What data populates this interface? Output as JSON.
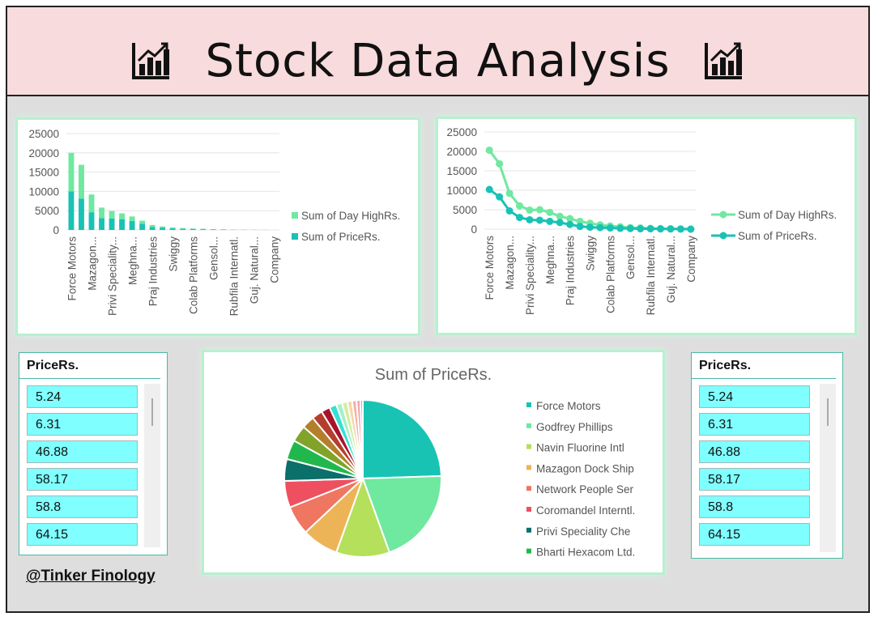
{
  "title": "Stock Data Analysis",
  "credit": "@Tinker Finology",
  "slicers": [
    {
      "header": "PriceRs.",
      "items": [
        "5.24",
        "6.31",
        "46.88",
        "58.17",
        "58.8",
        "64.15"
      ]
    },
    {
      "header": "PriceRs.",
      "items": [
        "5.24",
        "6.31",
        "46.88",
        "58.17",
        "58.8",
        "64.15"
      ]
    }
  ],
  "colors": {
    "high": "#6fe8a0",
    "price": "#19c2b5"
  },
  "chart_data": [
    {
      "type": "bar",
      "categories": [
        "Force Motors",
        "",
        "Mazagon...",
        "",
        "Privi Speciality...",
        "",
        "Meghna...",
        "",
        "Praj Industries",
        "",
        "Swiggy",
        "",
        "Colab Platforms",
        "",
        "Gensol...",
        "",
        "Rubfila Internatl.",
        "",
        "Guj. Natural...",
        "",
        "Company"
      ],
      "series": [
        {
          "name": "Sum of Day HighRs.",
          "values": [
            10000,
            8800,
            4600,
            2700,
            1900,
            1500,
            1200,
            800,
            500,
            300,
            250,
            200,
            150,
            100,
            80,
            60,
            40,
            30,
            20,
            10,
            0
          ]
        },
        {
          "name": "Sum of PriceRs.",
          "values": [
            10000,
            8100,
            4600,
            3100,
            3000,
            2800,
            2300,
            1600,
            800,
            600,
            400,
            300,
            250,
            200,
            150,
            100,
            60,
            40,
            30,
            20,
            0
          ]
        }
      ],
      "stacked": true,
      "ylim": [
        0,
        25000
      ],
      "yticks": [
        "25000",
        "20000",
        "15000",
        "10000",
        "5000",
        "0"
      ],
      "legend": "right"
    },
    {
      "type": "line",
      "categories": [
        "Force Motors",
        "",
        "Mazagon...",
        "",
        "Privi Speciality...",
        "",
        "Meghna...",
        "",
        "Praj Industries",
        "",
        "Swiggy",
        "",
        "Colab Platforms",
        "",
        "Gensol...",
        "",
        "Rubfila Internatl.",
        "",
        "Guj. Natural...",
        "",
        "Company"
      ],
      "series": [
        {
          "name": "Sum of Day HighRs.",
          "values": [
            20300,
            16800,
            9200,
            6000,
            4900,
            5000,
            4300,
            3300,
            2700,
            2000,
            1500,
            1100,
            800,
            600,
            400,
            300,
            200,
            150,
            100,
            50,
            0
          ]
        },
        {
          "name": "Sum of PriceRs.",
          "values": [
            10200,
            8300,
            4700,
            3000,
            2400,
            2300,
            2000,
            1700,
            1200,
            700,
            500,
            400,
            300,
            200,
            150,
            100,
            80,
            60,
            40,
            20,
            0
          ]
        }
      ],
      "ylim": [
        0,
        25000
      ],
      "yticks": [
        "25000",
        "20000",
        "15000",
        "10000",
        "5000",
        "0"
      ],
      "legend": "right"
    },
    {
      "type": "pie",
      "title": "Sum of PriceRs.",
      "slices": [
        {
          "label": "Force Motors",
          "value": 24.5,
          "color": "#18c3b4"
        },
        {
          "label": "Godfrey Phillips",
          "value": 20.0,
          "color": "#6fe8a0"
        },
        {
          "label": "Navin Fluorine Intl",
          "value": 11.0,
          "color": "#b4e05b"
        },
        {
          "label": "Mazagon Dock Ship",
          "value": 7.5,
          "color": "#ecb457"
        },
        {
          "label": "Network People Ser",
          "value": 6.0,
          "color": "#ef7660"
        },
        {
          "label": "Coromandel Interntl.",
          "value": 5.5,
          "color": "#ef5060"
        },
        {
          "label": "Privi Speciality Che",
          "value": 4.5,
          "color": "#0b6f6a"
        },
        {
          "label": "Bharti Hexacom Ltd.",
          "value": 4.0,
          "color": "#20b84d"
        },
        {
          "label": "",
          "value": 3.4,
          "color": "#82a32a"
        },
        {
          "label": "",
          "value": 2.6,
          "color": "#b37f2a"
        },
        {
          "label": "",
          "value": 2.2,
          "color": "#b53d2d"
        },
        {
          "label": "",
          "value": 1.8,
          "color": "#a8132b"
        },
        {
          "label": "",
          "value": 1.5,
          "color": "#37e0d4"
        },
        {
          "label": "",
          "value": 1.2,
          "color": "#a3f2c4"
        },
        {
          "label": "",
          "value": 1.1,
          "color": "#d3ee9e"
        },
        {
          "label": "",
          "value": 1.0,
          "color": "#f5d7a8"
        },
        {
          "label": "",
          "value": 0.9,
          "color": "#f3b0a4"
        },
        {
          "label": "",
          "value": 0.8,
          "color": "#f3a5b0"
        },
        {
          "label": "",
          "value": 0.5,
          "color": "#8fb5b2"
        }
      ]
    }
  ]
}
